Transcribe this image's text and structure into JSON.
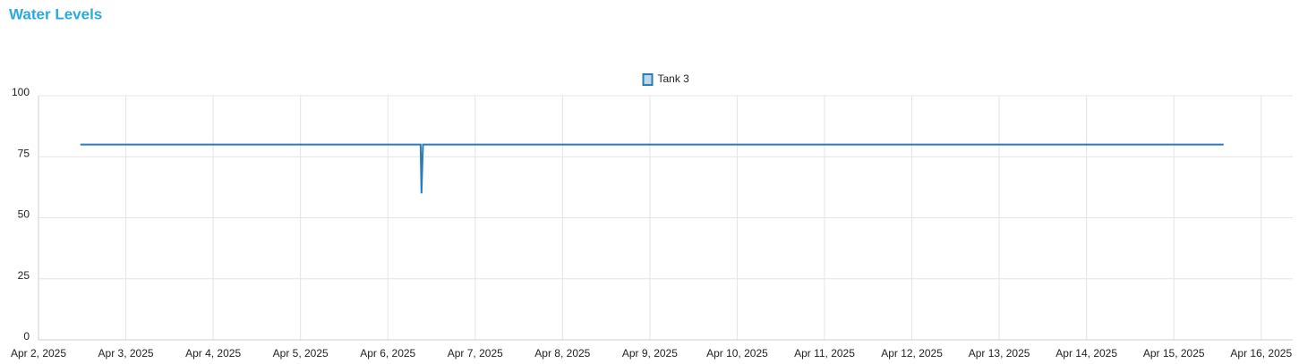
{
  "chart_data": {
    "type": "line",
    "title": "Water Levels",
    "series": [
      {
        "name": "Tank 3",
        "color": "#2b7bb9",
        "x": [
          "2025-04-02T11:30",
          "2025-04-06T09:00",
          "2025-04-06T09:15",
          "2025-04-06T09:30",
          "2025-04-06T09:40",
          "2025-04-15T13:40"
        ],
        "values": [
          80,
          80,
          60,
          73,
          80,
          80
        ]
      }
    ],
    "xlim": [
      "2025-04-02T00:00",
      "2025-04-16T08:40"
    ],
    "xticks": [
      {
        "value": "2025-04-02",
        "label": "Apr 2, 2025"
      },
      {
        "value": "2025-04-03",
        "label": "Apr 3, 2025"
      },
      {
        "value": "2025-04-04",
        "label": "Apr 4, 2025"
      },
      {
        "value": "2025-04-05",
        "label": "Apr 5, 2025"
      },
      {
        "value": "2025-04-06",
        "label": "Apr 6, 2025"
      },
      {
        "value": "2025-04-07",
        "label": "Apr 7, 2025"
      },
      {
        "value": "2025-04-08",
        "label": "Apr 8, 2025"
      },
      {
        "value": "2025-04-09",
        "label": "Apr 9, 2025"
      },
      {
        "value": "2025-04-10",
        "label": "Apr 10, 2025"
      },
      {
        "value": "2025-04-11",
        "label": "Apr 11, 2025"
      },
      {
        "value": "2025-04-12",
        "label": "Apr 12, 2025"
      },
      {
        "value": "2025-04-13",
        "label": "Apr 13, 2025"
      },
      {
        "value": "2025-04-14",
        "label": "Apr 14, 2025"
      },
      {
        "value": "2025-04-15",
        "label": "Apr 15, 2025"
      },
      {
        "value": "2025-04-16",
        "label": "Apr 16, 2025"
      }
    ],
    "ylim": [
      0,
      100
    ],
    "yticks": [
      0,
      25,
      50,
      75,
      100
    ],
    "grid": true,
    "legend": "top"
  }
}
